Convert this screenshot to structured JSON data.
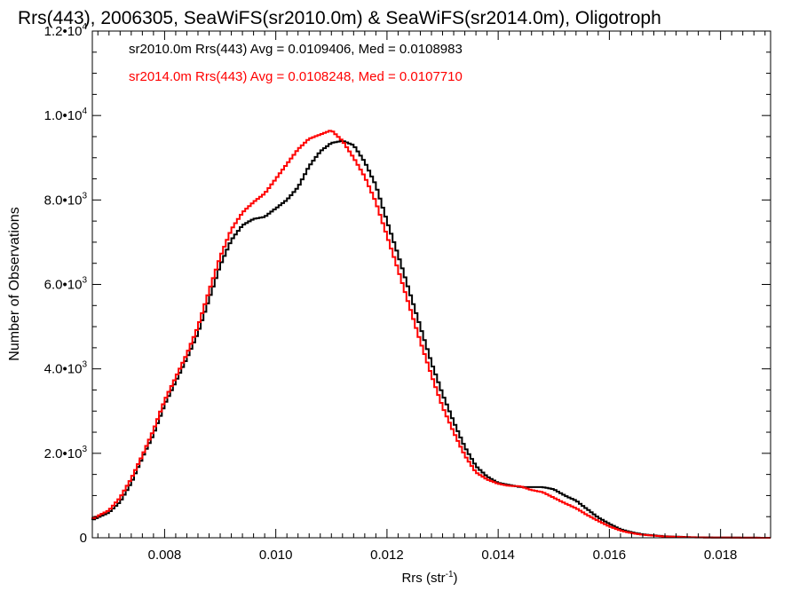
{
  "chart_data": {
    "type": "line",
    "title": "Rrs(443), 2006305, SeaWiFS(sr2010.0m) & SeaWiFS(sr2014.0m), Oligotroph",
    "xlabel_main": "Rrs (str",
    "xlabel_sup": "-1",
    "xlabel_end": ")",
    "ylabel": "Number of Observations",
    "xlim": [
      0.0067,
      0.0189
    ],
    "ylim": [
      0,
      12000
    ],
    "x_ticks": [
      {
        "value": 0.008,
        "label": "0.008"
      },
      {
        "value": 0.01,
        "label": "0.010"
      },
      {
        "value": 0.012,
        "label": "0.012"
      },
      {
        "value": 0.014,
        "label": "0.014"
      },
      {
        "value": 0.016,
        "label": "0.016"
      },
      {
        "value": 0.018,
        "label": "0.018"
      }
    ],
    "y_ticks": [
      {
        "value": 0,
        "mant": "0",
        "exp": ""
      },
      {
        "value": 2000,
        "mant": "2.0•10",
        "exp": "3"
      },
      {
        "value": 4000,
        "mant": "4.0•10",
        "exp": "3"
      },
      {
        "value": 6000,
        "mant": "6.0•10",
        "exp": "3"
      },
      {
        "value": 8000,
        "mant": "8.0•10",
        "exp": "3"
      },
      {
        "value": 10000,
        "mant": "1.0•10",
        "exp": "4"
      },
      {
        "value": 12000,
        "mant": "1.2•10",
        "exp": "4"
      }
    ],
    "annotations": [
      "sr2010.0m Rrs(443) Avg = 0.0109406, Med = 0.0108983",
      "sr2014.0m Rrs(443) Avg = 0.0108248, Med = 0.0107710"
    ],
    "series": [
      {
        "color": "#000000",
        "points": [
          [
            0.0067,
            420
          ],
          [
            0.007,
            600
          ],
          [
            0.0072,
            850
          ],
          [
            0.0074,
            1300
          ],
          [
            0.0076,
            1900
          ],
          [
            0.0078,
            2450
          ],
          [
            0.008,
            3150
          ],
          [
            0.0082,
            3700
          ],
          [
            0.0084,
            4250
          ],
          [
            0.0086,
            4850
          ],
          [
            0.0088,
            5650
          ],
          [
            0.009,
            6450
          ],
          [
            0.0092,
            7050
          ],
          [
            0.0094,
            7400
          ],
          [
            0.0096,
            7550
          ],
          [
            0.0098,
            7600
          ],
          [
            0.01,
            7800
          ],
          [
            0.0102,
            8000
          ],
          [
            0.0104,
            8300
          ],
          [
            0.0106,
            8800
          ],
          [
            0.0108,
            9150
          ],
          [
            0.011,
            9350
          ],
          [
            0.0112,
            9400
          ],
          [
            0.0114,
            9300
          ],
          [
            0.0116,
            8900
          ],
          [
            0.0118,
            8350
          ],
          [
            0.012,
            7500
          ],
          [
            0.0122,
            6700
          ],
          [
            0.0124,
            5850
          ],
          [
            0.0126,
            5000
          ],
          [
            0.0128,
            4150
          ],
          [
            0.013,
            3400
          ],
          [
            0.0132,
            2750
          ],
          [
            0.0134,
            2150
          ],
          [
            0.0136,
            1700
          ],
          [
            0.0138,
            1450
          ],
          [
            0.014,
            1300
          ],
          [
            0.0142,
            1250
          ],
          [
            0.0144,
            1200
          ],
          [
            0.0146,
            1200
          ],
          [
            0.0148,
            1200
          ],
          [
            0.015,
            1150
          ],
          [
            0.0152,
            1000
          ],
          [
            0.0154,
            880
          ],
          [
            0.0156,
            680
          ],
          [
            0.0158,
            480
          ],
          [
            0.016,
            330
          ],
          [
            0.0162,
            200
          ],
          [
            0.0164,
            130
          ],
          [
            0.0166,
            80
          ],
          [
            0.017,
            35
          ],
          [
            0.0175,
            12
          ],
          [
            0.018,
            5
          ],
          [
            0.0189,
            0
          ]
        ]
      },
      {
        "color": "#ff0000",
        "points": [
          [
            0.0067,
            450
          ],
          [
            0.007,
            650
          ],
          [
            0.0072,
            950
          ],
          [
            0.0074,
            1400
          ],
          [
            0.0076,
            1950
          ],
          [
            0.0078,
            2550
          ],
          [
            0.008,
            3250
          ],
          [
            0.0082,
            3800
          ],
          [
            0.0084,
            4350
          ],
          [
            0.0086,
            5000
          ],
          [
            0.0088,
            5850
          ],
          [
            0.009,
            6650
          ],
          [
            0.0092,
            7300
          ],
          [
            0.0094,
            7700
          ],
          [
            0.0096,
            7950
          ],
          [
            0.0098,
            8150
          ],
          [
            0.01,
            8500
          ],
          [
            0.0102,
            8850
          ],
          [
            0.0104,
            9200
          ],
          [
            0.0106,
            9450
          ],
          [
            0.0108,
            9550
          ],
          [
            0.011,
            9650
          ],
          [
            0.0112,
            9400
          ],
          [
            0.0114,
            9000
          ],
          [
            0.0116,
            8550
          ],
          [
            0.0118,
            7950
          ],
          [
            0.012,
            7150
          ],
          [
            0.0122,
            6350
          ],
          [
            0.0124,
            5500
          ],
          [
            0.0126,
            4650
          ],
          [
            0.0128,
            3850
          ],
          [
            0.013,
            3100
          ],
          [
            0.0132,
            2500
          ],
          [
            0.0134,
            1950
          ],
          [
            0.0136,
            1550
          ],
          [
            0.0138,
            1380
          ],
          [
            0.014,
            1280
          ],
          [
            0.0142,
            1230
          ],
          [
            0.0144,
            1220
          ],
          [
            0.0146,
            1130
          ],
          [
            0.0148,
            1080
          ],
          [
            0.015,
            950
          ],
          [
            0.0152,
            820
          ],
          [
            0.0154,
            700
          ],
          [
            0.0156,
            540
          ],
          [
            0.0158,
            400
          ],
          [
            0.016,
            270
          ],
          [
            0.0162,
            170
          ],
          [
            0.0164,
            110
          ],
          [
            0.0166,
            70
          ],
          [
            0.017,
            30
          ],
          [
            0.0175,
            10
          ],
          [
            0.018,
            4
          ],
          [
            0.0189,
            0
          ]
        ]
      }
    ]
  }
}
